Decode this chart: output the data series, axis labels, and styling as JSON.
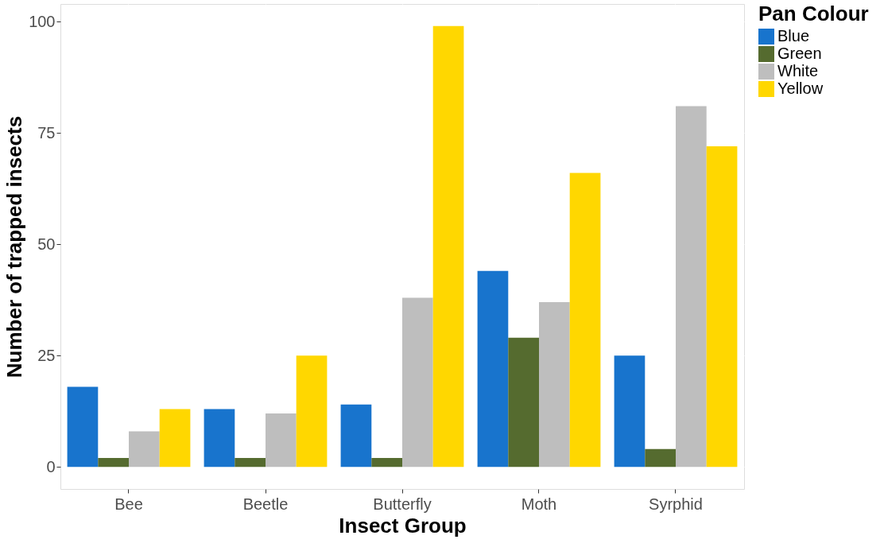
{
  "chart_data": {
    "type": "bar",
    "xlabel": "Insect Group",
    "ylabel": "Number of trapped insects",
    "legend_title": "Pan Colour",
    "categories": [
      "Bee",
      "Beetle",
      "Butterfly",
      "Moth",
      "Syrphid"
    ],
    "series": [
      {
        "name": "Blue",
        "color": "#1874cd",
        "values": [
          18,
          13,
          14,
          44,
          25
        ]
      },
      {
        "name": "Green",
        "color": "#556b2f",
        "values": [
          2,
          2,
          2,
          29,
          4
        ]
      },
      {
        "name": "White",
        "color": "#bebebe",
        "values": [
          8,
          12,
          38,
          37,
          81
        ]
      },
      {
        "name": "Yellow",
        "color": "#ffd700",
        "values": [
          13,
          25,
          99,
          66,
          72
        ]
      }
    ],
    "ylim": [
      -4.95,
      103.95
    ],
    "yticks": [
      0,
      25,
      50,
      75,
      100
    ],
    "grid": true,
    "legend": "right"
  }
}
